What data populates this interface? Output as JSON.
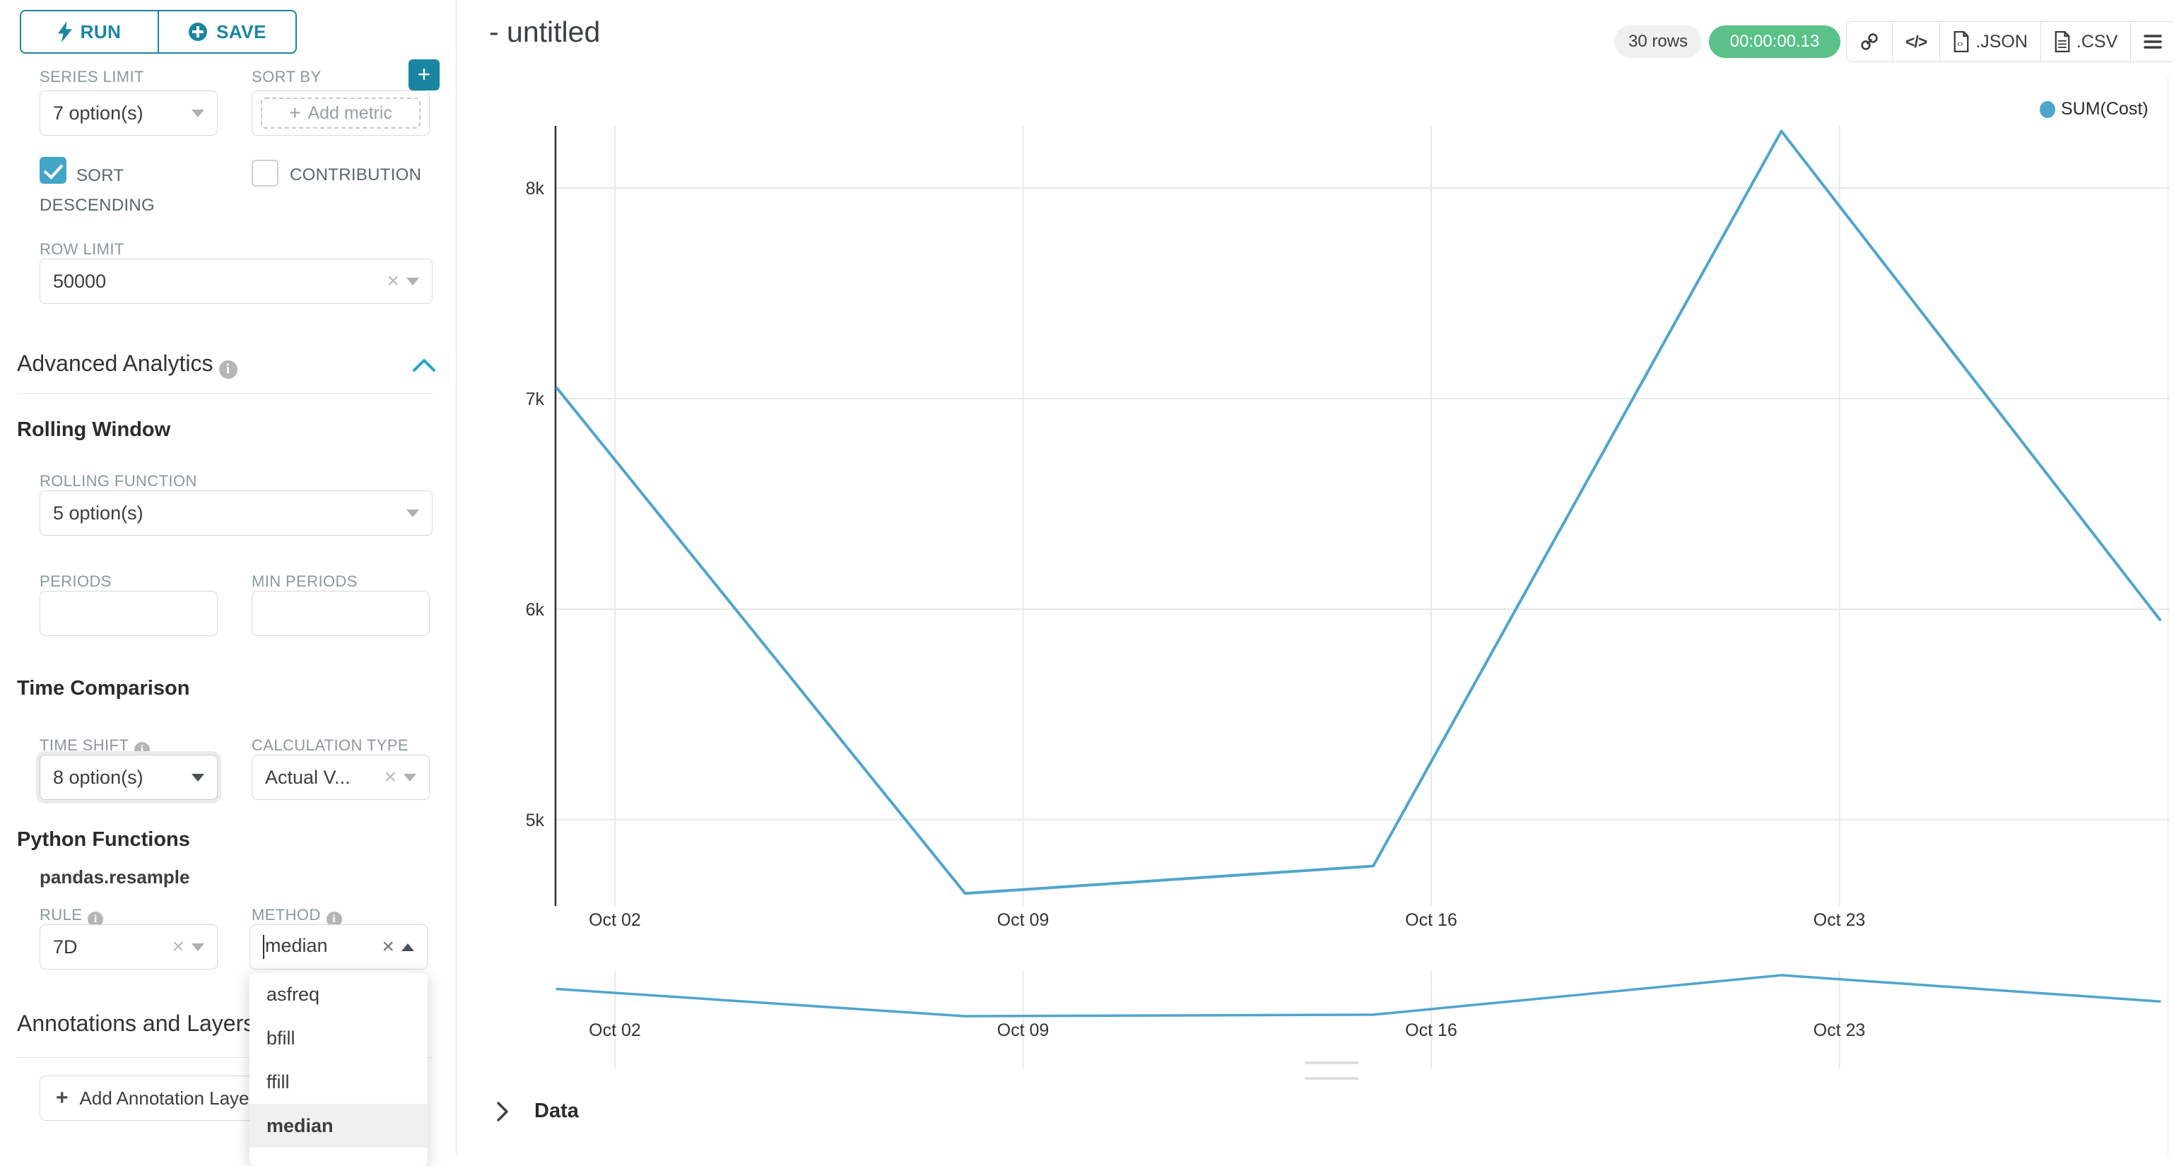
{
  "sidebar": {
    "run_label": "RUN",
    "save_label": "SAVE",
    "series_limit": {
      "label": "SERIES LIMIT",
      "value": "7 option(s)"
    },
    "sort_by": {
      "label": "SORT BY",
      "add_metric": "Add metric"
    },
    "sort_descending_label": "SORT DESCENDING",
    "contribution_label": "CONTRIBUTION",
    "row_limit": {
      "label": "ROW LIMIT",
      "value": "50000"
    },
    "advanced_analytics_title": "Advanced Analytics",
    "rolling_window": {
      "title": "Rolling Window",
      "rolling_function_label": "ROLLING FUNCTION",
      "rolling_function_value": "5 option(s)",
      "periods_label": "PERIODS",
      "min_periods_label": "MIN PERIODS"
    },
    "time_comparison": {
      "title": "Time Comparison",
      "time_shift_label": "TIME SHIFT",
      "time_shift_value": "8 option(s)",
      "calculation_type_label": "CALCULATION TYPE",
      "calculation_type_value": "Actual V..."
    },
    "python_functions": {
      "title": "Python Functions",
      "subtitle": "pandas.resample",
      "rule_label": "RULE",
      "rule_value": "7D",
      "method_label": "METHOD",
      "method_value": "median",
      "method_options": [
        "asfreq",
        "bfill",
        "ffill",
        "median"
      ],
      "method_selected": "median"
    },
    "annotations": {
      "title": "Annotations and Layers",
      "add_button": "Add Annotation Layer"
    }
  },
  "header": {
    "title": "- untitled",
    "rows_badge": "30 rows",
    "timer": "00:00:00.13",
    "json_label": ".JSON",
    "csv_label": ".CSV",
    "code_glyph": "</>"
  },
  "chart_data": {
    "type": "line",
    "title": "- untitled",
    "x": [
      "Oct 01",
      "Oct 08",
      "Oct 15",
      "Oct 22",
      "Oct 29"
    ],
    "series": [
      {
        "name": "SUM(Cost)",
        "values": [
          7050,
          4650,
          4780,
          8270,
          5950
        ]
      }
    ],
    "legend": [
      {
        "name": "SUM(Cost)",
        "color": "#4FA5CE"
      }
    ],
    "x_tick_labels": [
      "Oct 02",
      "Oct 09",
      "Oct 16",
      "Oct 23"
    ],
    "y_tick_labels": [
      "8k",
      "7k",
      "6k",
      "5k"
    ],
    "y_tick_values": [
      8000,
      7000,
      6000,
      5000
    ],
    "ylim": [
      4350,
      8600
    ],
    "grid": true,
    "legend_position": "top-right",
    "has_preview_strip": true
  },
  "data_panel": {
    "label": "Data"
  },
  "colors": {
    "accent_teal": "#20A7C9",
    "button_teal": "#1A85A0",
    "checkbox_teal": "#42A5C8",
    "line_blue": "#4FA5CE",
    "timer_green": "#5AC189",
    "grid_gray": "#e8e8e8"
  }
}
